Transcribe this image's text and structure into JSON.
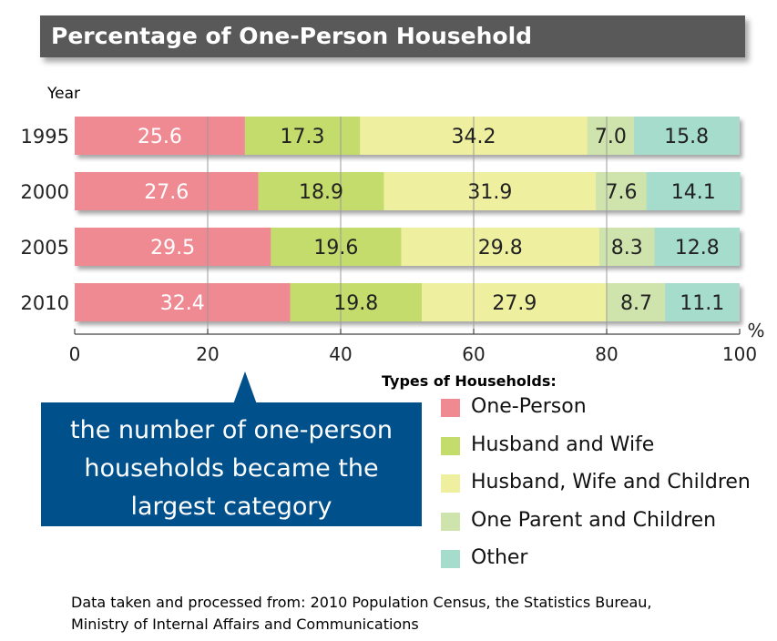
{
  "title": "Percentage of One-Person Household",
  "callout": {
    "lines": [
      "the number of one-person",
      "households became the",
      "largest category"
    ]
  },
  "legend": {
    "title": "Types of Households:",
    "items": [
      {
        "label": "One-Person",
        "color": "#ef8a93"
      },
      {
        "label": "Husband and Wife",
        "color": "#c4dc6c"
      },
      {
        "label": "Husband, Wife and Children",
        "color": "#eef0a0"
      },
      {
        "label": "One Parent and Children",
        "color": "#cfe4ad"
      },
      {
        "label": "Other",
        "color": "#a6dccb"
      }
    ]
  },
  "source": {
    "line1": "Data taken and processed from: 2010 Population Census, the Statistics Bureau,",
    "line2": "Ministry of Internal Affairs and Communications"
  },
  "chart_data": {
    "type": "bar",
    "orientation": "horizontal",
    "stacked": true,
    "categories": [
      "1995",
      "2000",
      "2005",
      "2010"
    ],
    "series": [
      {
        "name": "One-Person",
        "values": [
          25.6,
          27.6,
          29.5,
          32.4
        ],
        "color": "#ef8a93"
      },
      {
        "name": "Husband and Wife",
        "values": [
          17.3,
          18.9,
          19.6,
          19.8
        ],
        "color": "#c4dc6c"
      },
      {
        "name": "Husband, Wife and Children",
        "values": [
          34.2,
          31.9,
          29.8,
          27.9
        ],
        "color": "#eef0a0"
      },
      {
        "name": "One Parent and Children",
        "values": [
          7.0,
          7.6,
          8.3,
          8.7
        ],
        "color": "#cfe4ad"
      },
      {
        "name": "Other",
        "values": [
          15.8,
          14.1,
          12.8,
          11.1
        ],
        "color": "#a6dccb"
      }
    ],
    "ylabel": "Year",
    "x_unit": "%",
    "xlim": [
      0,
      100
    ],
    "xticks": [
      "0",
      "20",
      "40",
      "60",
      "80",
      "100"
    ],
    "grid": true,
    "data_labels": true
  }
}
